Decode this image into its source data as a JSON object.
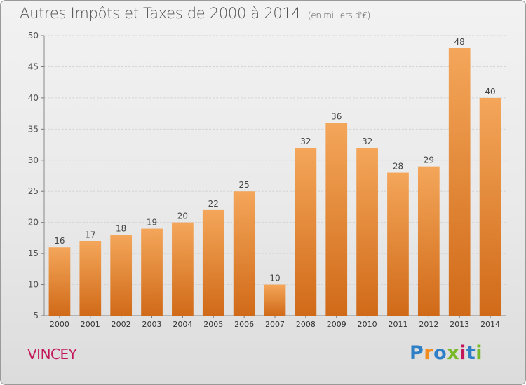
{
  "chart_data": {
    "type": "bar",
    "title": "Autres Impôts et Taxes de 2000 à 2014",
    "subtitle": "(en milliers d'€)",
    "categories": [
      "2000",
      "2001",
      "2002",
      "2003",
      "2004",
      "2005",
      "2006",
      "2007",
      "2008",
      "2009",
      "2010",
      "2011",
      "2012",
      "2013",
      "2014"
    ],
    "values": [
      16,
      17,
      18,
      19,
      20,
      22,
      25,
      10,
      32,
      36,
      32,
      28,
      29,
      48,
      40
    ],
    "ylim": [
      5,
      50
    ],
    "yticks": [
      5,
      10,
      15,
      20,
      25,
      30,
      35,
      40,
      45,
      50
    ],
    "grid": true,
    "bar_color_top": "#f4a65a",
    "bar_color_bottom": "#d06a18",
    "xlabel": "",
    "ylabel": ""
  },
  "footer": {
    "town": "VINCEY",
    "logo": "Proxiti",
    "town_color": "#c2185b",
    "logo_colors": [
      "#2f7fc7",
      "#f28c1e",
      "#2f7fc7",
      "#78b829",
      "#c2185b",
      "#2f7fc7",
      "#78b829"
    ]
  }
}
